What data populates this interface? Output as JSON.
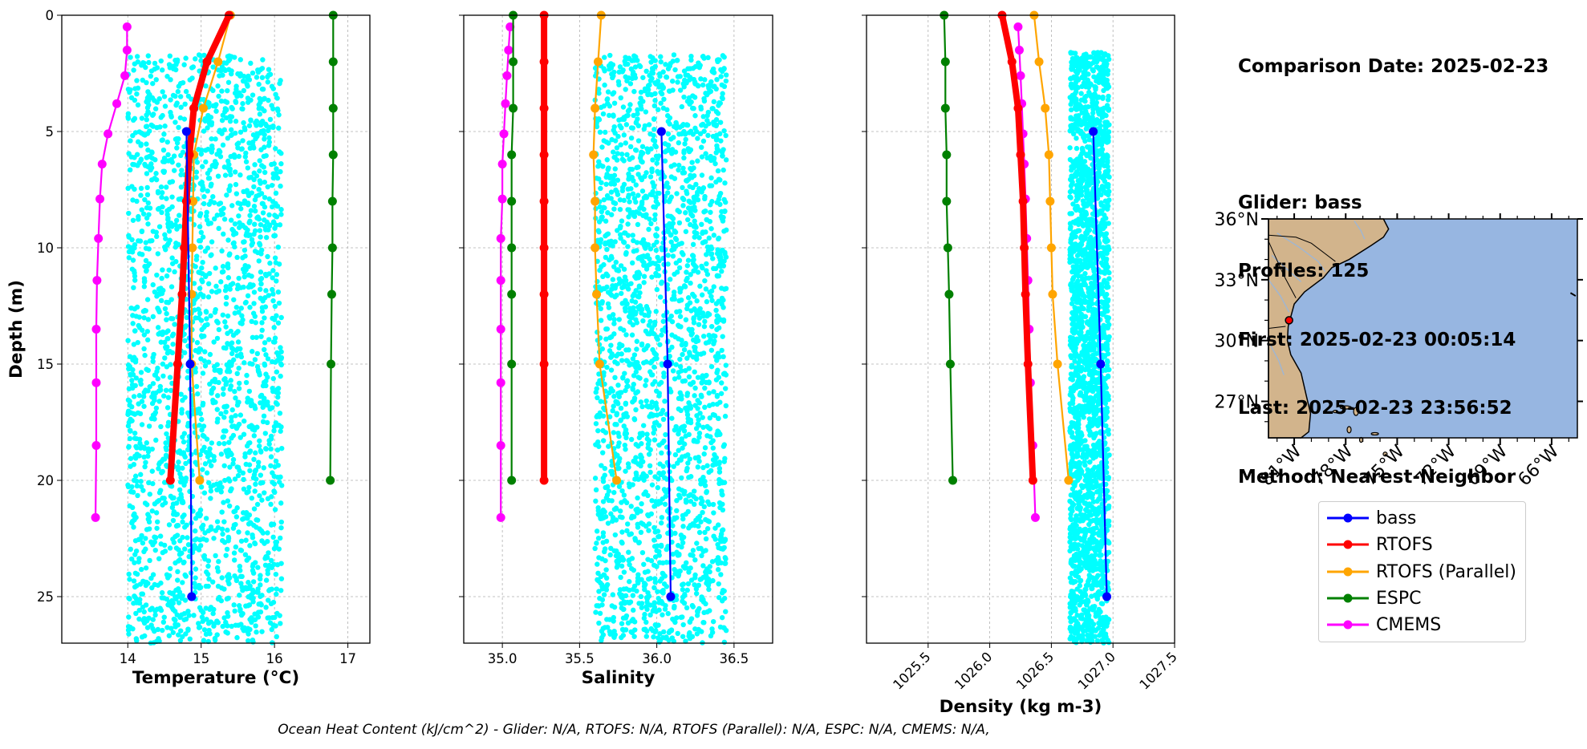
{
  "chart_data": [
    {
      "type": "scatter",
      "xlabel": "Temperature (°C)",
      "ylabel": "Depth (m)",
      "xlim": [
        13.1,
        17.3
      ],
      "ylim": [
        27,
        0
      ],
      "xticks": [
        "14",
        "15",
        "16",
        "17"
      ],
      "xtick_values": [
        14,
        15,
        16,
        17
      ],
      "yticks": [
        "0",
        "5",
        "10",
        "15",
        "20",
        "25"
      ],
      "ytick_values": [
        0,
        5,
        10,
        15,
        20,
        25
      ],
      "grid": true,
      "scatter_cloud": {
        "name": "",
        "color": "#00ffff",
        "x_range": [
          14.0,
          16.1
        ],
        "depth_range": [
          1.7,
          27
        ]
      },
      "series": [
        {
          "name": "bass",
          "color": "#0000ff",
          "depth": [
            5,
            15,
            25
          ],
          "values": [
            14.8,
            14.85,
            14.87
          ]
        },
        {
          "name": "RTOFS",
          "color": "#ff0000",
          "depth": [
            0,
            2,
            4,
            6,
            8,
            10,
            12,
            15,
            20
          ],
          "values": [
            15.38,
            15.08,
            14.9,
            14.84,
            14.8,
            14.77,
            14.74,
            14.68,
            14.58
          ]
        },
        {
          "name": "RTOFS (Parallel)",
          "color": "#ffa500",
          "depth": [
            0,
            2,
            4,
            6,
            8,
            10,
            12,
            15,
            20
          ],
          "values": [
            15.4,
            15.23,
            15.03,
            14.9,
            14.89,
            14.88,
            14.87,
            14.87,
            14.98
          ]
        },
        {
          "name": "ESPC",
          "color": "#008000",
          "depth": [
            0,
            2,
            4,
            6,
            8,
            10,
            12,
            15,
            20
          ],
          "values": [
            16.8,
            16.8,
            16.8,
            16.8,
            16.79,
            16.79,
            16.78,
            16.77,
            16.76
          ]
        },
        {
          "name": "CMEMS",
          "color": "#ff00ff",
          "depth": [
            0.5,
            1.5,
            2.6,
            3.8,
            5.1,
            6.4,
            7.9,
            9.6,
            11.4,
            13.5,
            15.8,
            18.5,
            21.6
          ],
          "values": [
            13.99,
            13.99,
            13.96,
            13.85,
            13.73,
            13.65,
            13.62,
            13.6,
            13.58,
            13.57,
            13.57,
            13.57,
            13.56
          ]
        }
      ]
    },
    {
      "type": "scatter",
      "xlabel": "Salinity",
      "xlim": [
        34.75,
        36.75
      ],
      "ylim": [
        27,
        0
      ],
      "xticks": [
        "35.0",
        "35.5",
        "36.0",
        "36.5"
      ],
      "xtick_values": [
        35.0,
        35.5,
        36.0,
        36.5
      ],
      "grid": true,
      "scatter_cloud": {
        "name": "",
        "color": "#00ffff",
        "x_range": [
          35.6,
          36.45
        ],
        "depth_range": [
          1.7,
          27
        ]
      },
      "series": [
        {
          "name": "bass",
          "color": "#0000ff",
          "depth": [
            5,
            15,
            25
          ],
          "values": [
            36.03,
            36.07,
            36.09
          ]
        },
        {
          "name": "RTOFS",
          "color": "#ff0000",
          "depth": [
            0,
            2,
            4,
            6,
            8,
            10,
            12,
            15,
            20
          ],
          "values": [
            35.27,
            35.27,
            35.27,
            35.27,
            35.27,
            35.27,
            35.27,
            35.27,
            35.27
          ]
        },
        {
          "name": "RTOFS (Parallel)",
          "color": "#ffa500",
          "depth": [
            0,
            2,
            4,
            6,
            8,
            10,
            12,
            15,
            20
          ],
          "values": [
            35.64,
            35.62,
            35.6,
            35.59,
            35.6,
            35.6,
            35.61,
            35.63,
            35.74
          ]
        },
        {
          "name": "ESPC",
          "color": "#008000",
          "depth": [
            0,
            2,
            4,
            6,
            8,
            10,
            12,
            15,
            20
          ],
          "values": [
            35.07,
            35.07,
            35.07,
            35.06,
            35.06,
            35.06,
            35.06,
            35.06,
            35.06
          ]
        },
        {
          "name": "CMEMS",
          "color": "#ff00ff",
          "depth": [
            0.5,
            1.5,
            2.6,
            3.8,
            5.1,
            6.4,
            7.9,
            9.6,
            11.4,
            13.5,
            15.8,
            18.5,
            21.6
          ],
          "values": [
            35.05,
            35.04,
            35.03,
            35.02,
            35.01,
            35.0,
            35.0,
            34.99,
            34.99,
            34.99,
            34.99,
            34.99,
            34.99
          ]
        }
      ]
    },
    {
      "type": "scatter",
      "xlabel": "Density (kg m-3)",
      "xlim": [
        1025.0,
        1027.5
      ],
      "ylim": [
        27,
        0
      ],
      "xticks": [
        "1025.5",
        "1026.0",
        "1026.5",
        "1027.0",
        "1027.5"
      ],
      "xtick_values": [
        1025.5,
        1026.0,
        1026.5,
        1027.0,
        1027.5
      ],
      "grid": true,
      "scatter_cloud": {
        "name": "",
        "color": "#00ffff",
        "x_range": [
          1026.65,
          1026.97
        ],
        "depth_range": [
          1.6,
          27
        ]
      },
      "series": [
        {
          "name": "bass",
          "color": "#0000ff",
          "depth": [
            5,
            15,
            25
          ],
          "values": [
            1026.84,
            1026.9,
            1026.95
          ]
        },
        {
          "name": "RTOFS",
          "color": "#ff0000",
          "depth": [
            0,
            2,
            4,
            6,
            8,
            10,
            12,
            15,
            20
          ],
          "values": [
            1026.1,
            1026.18,
            1026.23,
            1026.25,
            1026.27,
            1026.28,
            1026.29,
            1026.31,
            1026.35
          ]
        },
        {
          "name": "RTOFS (Parallel)",
          "color": "#ffa500",
          "depth": [
            0,
            2,
            4,
            6,
            8,
            10,
            12,
            15,
            20
          ],
          "values": [
            1026.36,
            1026.4,
            1026.45,
            1026.48,
            1026.49,
            1026.5,
            1026.51,
            1026.55,
            1026.64
          ]
        },
        {
          "name": "ESPC",
          "color": "#008000",
          "depth": [
            0,
            2,
            4,
            6,
            8,
            10,
            12,
            15,
            20
          ],
          "values": [
            1025.63,
            1025.64,
            1025.64,
            1025.65,
            1025.65,
            1025.66,
            1025.67,
            1025.68,
            1025.7
          ]
        },
        {
          "name": "CMEMS",
          "color": "#ff00ff",
          "depth": [
            0.5,
            1.5,
            2.6,
            3.8,
            5.1,
            6.4,
            7.9,
            9.6,
            11.4,
            13.5,
            15.8,
            18.5,
            21.6
          ],
          "values": [
            1026.23,
            1026.24,
            1026.25,
            1026.26,
            1026.27,
            1026.28,
            1026.29,
            1026.3,
            1026.31,
            1026.32,
            1026.33,
            1026.35,
            1026.37
          ]
        }
      ]
    }
  ],
  "info": {
    "comparison_date": "Comparison Date: 2025-02-23",
    "glider": "Glider: bass",
    "profiles": "Profiles: 125",
    "first": "First: 2025-02-23 00:05:14",
    "last": "Last: 2025-02-23 23:56:52",
    "method": "Method: Nearest-Neighbor"
  },
  "map": {
    "lat_range": [
      25.2,
      36.0
    ],
    "lon_range": [
      -82.5,
      -64.5
    ],
    "lat_ticks": [
      "36°N",
      "33°N",
      "30°N",
      "27°N"
    ],
    "lat_tick_values": [
      36,
      33,
      30,
      27
    ],
    "lon_ticks": [
      "81°W",
      "78°W",
      "75°W",
      "72°W",
      "69°W",
      "66°W"
    ],
    "lon_tick_values": [
      -81,
      -78,
      -75,
      -72,
      -69,
      -66
    ],
    "glider_position": {
      "lat": 31.0,
      "lon": -81.3
    },
    "land_color": "#d2b48c",
    "ocean_color": "#97b6e1",
    "marker_color": "#ff0000"
  },
  "legend": [
    {
      "label": "bass",
      "color": "#0000ff"
    },
    {
      "label": "RTOFS",
      "color": "#ff0000"
    },
    {
      "label": "RTOFS (Parallel)",
      "color": "#ffa500"
    },
    {
      "label": "ESPC",
      "color": "#008000"
    },
    {
      "label": "CMEMS",
      "color": "#ff00ff"
    }
  ],
  "footer": "Ocean Heat Content (kJ/cm^2) - Glider: N/A,  RTOFS: N/A,  RTOFS (Parallel): N/A,  ESPC: N/A,  CMEMS: N/A,"
}
